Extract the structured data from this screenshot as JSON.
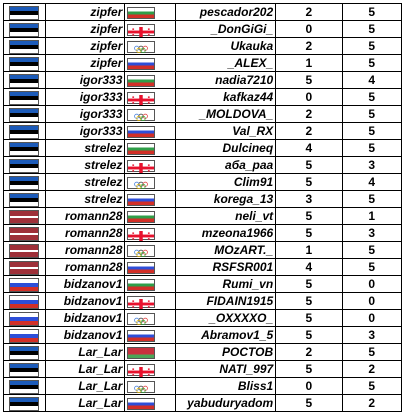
{
  "flag_colors": {
    "ee": [
      "#1c5bb9",
      "#000000",
      "#ffffff"
    ],
    "bg": [
      "#ffffff",
      "#2f9e48",
      "#d22f27"
    ],
    "ru": [
      "#ffffff",
      "#2d4ed8",
      "#d22f27"
    ],
    "lv": [
      "#9e3039",
      "#ffffff",
      "#9e3039"
    ],
    "ge": "georgia-cross",
    "md": "olympic-rings",
    "by": [
      "#c8313e",
      "#c8313e",
      "#4aa657"
    ]
  },
  "rows": [
    {
      "flag1": "estonia-flag",
      "player1": "zipfer",
      "flag2": "bulgaria-flag",
      "player2": "pescador202",
      "score1": "2",
      "score2": "5"
    },
    {
      "flag1": "estonia-flag",
      "player1": "zipfer",
      "flag2": "georgia-flag",
      "player2": "_DonGiGi_",
      "score1": "0",
      "score2": "5"
    },
    {
      "flag1": "estonia-flag",
      "player1": "zipfer",
      "flag2": "olympic-flag",
      "player2": "Ukauka",
      "score1": "2",
      "score2": "5"
    },
    {
      "flag1": "estonia-flag",
      "player1": "zipfer",
      "flag2": "russia-flag",
      "player2": "_ALEX_",
      "score1": "1",
      "score2": "5"
    },
    {
      "flag1": "estonia-flag",
      "player1": "igor333",
      "flag2": "bulgaria-flag",
      "player2": "nadia7210",
      "score1": "5",
      "score2": "4"
    },
    {
      "flag1": "estonia-flag",
      "player1": "igor333",
      "flag2": "georgia-flag",
      "player2": "kafkaz44",
      "score1": "0",
      "score2": "5"
    },
    {
      "flag1": "estonia-flag",
      "player1": "igor333",
      "flag2": "olympic-flag",
      "player2": "_MOLDOVA_",
      "score1": "2",
      "score2": "5"
    },
    {
      "flag1": "estonia-flag",
      "player1": "igor333",
      "flag2": "russia-flag",
      "player2": "Val_RX",
      "score1": "2",
      "score2": "5"
    },
    {
      "flag1": "estonia-flag",
      "player1": "strelez",
      "flag2": "bulgaria-flag",
      "player2": "Dulcineq",
      "score1": "4",
      "score2": "5"
    },
    {
      "flag1": "estonia-flag",
      "player1": "strelez",
      "flag2": "georgia-flag",
      "player2": "aба_paa",
      "score1": "5",
      "score2": "3"
    },
    {
      "flag1": "estonia-flag",
      "player1": "strelez",
      "flag2": "olympic-flag",
      "player2": "Clim91",
      "score1": "5",
      "score2": "4"
    },
    {
      "flag1": "estonia-flag",
      "player1": "strelez",
      "flag2": "russia-flag",
      "player2": "korega_13",
      "score1": "3",
      "score2": "5"
    },
    {
      "flag1": "latvia-flag",
      "player1": "romann28",
      "flag2": "bulgaria-flag",
      "player2": "neli_vt",
      "score1": "5",
      "score2": "1"
    },
    {
      "flag1": "latvia-flag",
      "player1": "romann28",
      "flag2": "georgia-flag",
      "player2": "mzeona1966",
      "score1": "5",
      "score2": "3"
    },
    {
      "flag1": "latvia-flag",
      "player1": "romann28",
      "flag2": "olympic-flag",
      "player2": "MOzART._",
      "score1": "1",
      "score2": "5"
    },
    {
      "flag1": "latvia-flag",
      "player1": "romann28",
      "flag2": "russia-flag",
      "player2": "RSFSR001",
      "score1": "4",
      "score2": "5"
    },
    {
      "flag1": "russia-flag",
      "player1": "bidzanov1",
      "flag2": "bulgaria-flag",
      "player2": "Rumi_vn",
      "score1": "5",
      "score2": "0"
    },
    {
      "flag1": "russia-flag",
      "player1": "bidzanov1",
      "flag2": "georgia-flag",
      "player2": "FIDAIN1915",
      "score1": "5",
      "score2": "0"
    },
    {
      "flag1": "russia-flag",
      "player1": "bidzanov1",
      "flag2": "olympic-flag",
      "player2": "_OXXXXO_",
      "score1": "5",
      "score2": "0"
    },
    {
      "flag1": "russia-flag",
      "player1": "bidzanov1",
      "flag2": "russia-flag",
      "player2": "Abramov1_5",
      "score1": "5",
      "score2": "3"
    },
    {
      "flag1": "estonia-flag",
      "player1": "Lar_Lar",
      "flag2": "belarus-flag",
      "player2": "POCTOB",
      "score1": "2",
      "score2": "5"
    },
    {
      "flag1": "estonia-flag",
      "player1": "Lar_Lar",
      "flag2": "georgia-flag",
      "player2": "NATI_997",
      "score1": "5",
      "score2": "2"
    },
    {
      "flag1": "estonia-flag",
      "player1": "Lar_Lar",
      "flag2": "olympic-flag",
      "player2": "Bliss1",
      "score1": "0",
      "score2": "5"
    },
    {
      "flag1": "estonia-flag",
      "player1": "Lar_Lar",
      "flag2": "russia-flag",
      "player2": "yabuduryadom",
      "score1": "5",
      "score2": "2"
    }
  ]
}
